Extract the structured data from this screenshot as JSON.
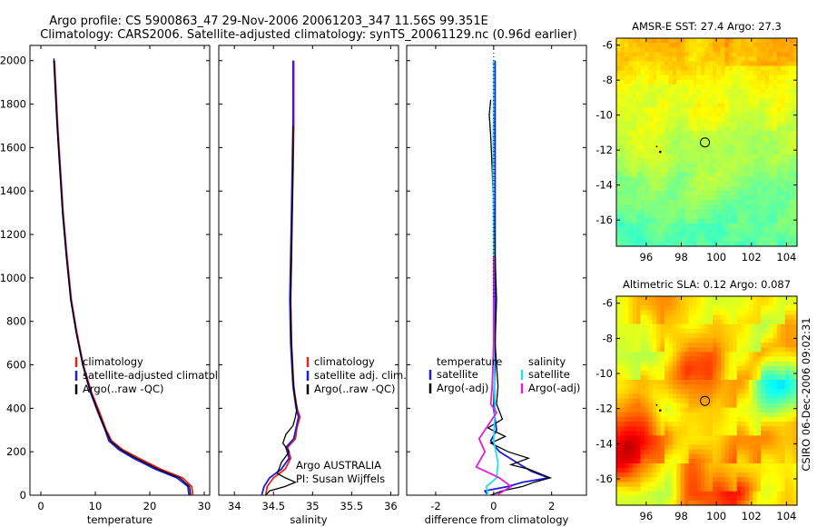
{
  "header": {
    "line1": "Argo profile: CS 5900863_47 29-Nov-2006 20061203_347 11.56S 99.351E",
    "line2": "Climatology: CARS2006. Satellite-adjusted climatology: synTS_20061129.nc (0.96d earlier)"
  },
  "side_label": "CSIRO 06-Dec-2006 09:02:31",
  "colors": {
    "climatology": "#e8231c",
    "satellite": "#1c1cdc",
    "argo": "#000000",
    "sat_diff": "#25e0e8",
    "argo_diff": "#e020d8"
  },
  "chart_data": [
    {
      "type": "line",
      "id": "temperature",
      "xlabel": "temperature",
      "xlim": [
        -2,
        31
      ],
      "ylim": [
        2070,
        0
      ],
      "xticks": [
        0,
        10,
        20,
        30
      ],
      "yticks": [
        0,
        200,
        400,
        600,
        800,
        1000,
        1200,
        1400,
        1600,
        1800,
        2000
      ],
      "legend": [
        "climatology",
        "satellite-adjusted climatology",
        "Argo(..raw -QC)"
      ],
      "series": [
        {
          "name": "climatology",
          "color": "#e8231c",
          "points": [
            [
              27.9,
              0
            ],
            [
              27.7,
              40
            ],
            [
              26,
              80
            ],
            [
              22,
              120
            ],
            [
              18,
              170
            ],
            [
              15,
              210
            ],
            [
              13,
              250
            ],
            [
              12,
              300
            ],
            [
              10.8,
              380
            ],
            [
              9.2,
              480
            ],
            [
              7.8,
              600
            ],
            [
              6.6,
              750
            ],
            [
              5.6,
              900
            ],
            [
              4.8,
              1100
            ],
            [
              4.1,
              1300
            ],
            [
              3.6,
              1500
            ],
            [
              3.1,
              1700
            ],
            [
              2.8,
              1850
            ],
            [
              2.5,
              2000
            ]
          ]
        },
        {
          "name": "satellite-adjusted climatology",
          "color": "#1c1cdc",
          "points": [
            [
              27.2,
              0
            ],
            [
              27,
              40
            ],
            [
              25,
              80
            ],
            [
              21,
              120
            ],
            [
              17,
              170
            ],
            [
              14.3,
              210
            ],
            [
              12.5,
              250
            ],
            [
              11.8,
              300
            ],
            [
              10.5,
              380
            ],
            [
              9,
              480
            ],
            [
              7.7,
              600
            ],
            [
              6.5,
              750
            ],
            [
              5.5,
              900
            ],
            [
              4.7,
              1100
            ],
            [
              4,
              1300
            ],
            [
              3.5,
              1500
            ],
            [
              3,
              1700
            ],
            [
              2.7,
              1850
            ],
            [
              2.4,
              2000
            ]
          ]
        },
        {
          "name": "Argo(..raw -QC)",
          "color": "#000000",
          "points": [
            [
              27.5,
              0
            ],
            [
              27.3,
              40
            ],
            [
              25.5,
              80
            ],
            [
              21.5,
              120
            ],
            [
              17.5,
              170
            ],
            [
              14.7,
              210
            ],
            [
              12.8,
              250
            ],
            [
              11.9,
              300
            ],
            [
              10.6,
              380
            ],
            [
              9.1,
              480
            ],
            [
              7.7,
              600
            ],
            [
              6.5,
              750
            ],
            [
              5.5,
              900
            ],
            [
              4.7,
              1100
            ],
            [
              4,
              1300
            ],
            [
              3.5,
              1500
            ],
            [
              3,
              1700
            ],
            [
              2.7,
              1850
            ],
            [
              2.4,
              2010
            ]
          ]
        }
      ]
    },
    {
      "type": "line",
      "id": "salinity",
      "xlabel": "salinity",
      "xlim": [
        33.8,
        36.1
      ],
      "ylim": [
        2070,
        0
      ],
      "xticks": [
        34,
        34.5,
        35,
        35.5,
        36
      ],
      "legend": [
        "climatology",
        "satellite adj. clim.",
        "Argo(..raw -QC)"
      ],
      "annotation": [
        "Argo AUSTRALIA",
        "PI: Susan Wijffels"
      ],
      "series": [
        {
          "name": "climatology",
          "color": "#e8231c",
          "points": [
            [
              34.4,
              0
            ],
            [
              34.42,
              40
            ],
            [
              34.5,
              80
            ],
            [
              34.65,
              120
            ],
            [
              34.72,
              170
            ],
            [
              34.68,
              220
            ],
            [
              34.78,
              260
            ],
            [
              34.8,
              310
            ],
            [
              34.84,
              360
            ],
            [
              34.8,
              400
            ],
            [
              34.76,
              500
            ],
            [
              34.73,
              700
            ],
            [
              34.72,
              900
            ],
            [
              34.73,
              1100
            ],
            [
              34.74,
              1300
            ],
            [
              34.75,
              1500
            ],
            [
              34.76,
              1700
            ],
            [
              34.76,
              2000
            ]
          ]
        },
        {
          "name": "satellite adj. clim.",
          "color": "#1c1cdc",
          "points": [
            [
              34.35,
              0
            ],
            [
              34.38,
              40
            ],
            [
              34.45,
              80
            ],
            [
              34.6,
              120
            ],
            [
              34.7,
              170
            ],
            [
              34.66,
              220
            ],
            [
              34.76,
              260
            ],
            [
              34.79,
              310
            ],
            [
              34.82,
              360
            ],
            [
              34.79,
              400
            ],
            [
              34.75,
              500
            ],
            [
              34.72,
              700
            ],
            [
              34.71,
              900
            ],
            [
              34.72,
              1100
            ],
            [
              34.73,
              1300
            ],
            [
              34.74,
              1500
            ],
            [
              34.75,
              1700
            ],
            [
              34.75,
              2000
            ]
          ]
        },
        {
          "name": "Argo(..raw -QC)",
          "color": "#000000",
          "points": [
            [
              34.4,
              0
            ],
            [
              34.45,
              20
            ],
            [
              34.65,
              40
            ],
            [
              34.78,
              60
            ],
            [
              34.65,
              80
            ],
            [
              34.55,
              100
            ],
            [
              34.6,
              150
            ],
            [
              34.7,
              200
            ],
            [
              34.62,
              240
            ],
            [
              34.66,
              280
            ],
            [
              34.75,
              320
            ],
            [
              34.78,
              360
            ],
            [
              34.8,
              400
            ],
            [
              34.77,
              460
            ],
            [
              34.75,
              540
            ],
            [
              34.73,
              700
            ],
            [
              34.72,
              900
            ],
            [
              34.73,
              1100
            ],
            [
              34.74,
              1300
            ],
            [
              34.75,
              1500
            ],
            [
              34.75,
              1700
            ]
          ]
        }
      ]
    },
    {
      "type": "line",
      "id": "difference",
      "xlabel": "difference from climatology",
      "xlim": [
        -3,
        3.2
      ],
      "ylim": [
        2070,
        0
      ],
      "xticks": [
        -2,
        0,
        2
      ],
      "legend_left": {
        "title": "temperature",
        "items": [
          "satellite",
          "Argo(-adj)"
        ]
      },
      "legend_right": {
        "title": "salinity",
        "items": [
          "satellite",
          "Argo(-adj)"
        ]
      },
      "series": [
        {
          "name": "satellite",
          "quantity": "temperature",
          "color": "#1c1cdc",
          "points": [
            [
              -0.2,
              0
            ],
            [
              -0.3,
              20
            ],
            [
              0.5,
              40
            ],
            [
              1,
              60
            ],
            [
              1.9,
              80
            ],
            [
              1.3,
              110
            ],
            [
              0.8,
              150
            ],
            [
              0.2,
              200
            ],
            [
              -0.1,
              250
            ],
            [
              0.1,
              300
            ],
            [
              0,
              400
            ],
            [
              0.05,
              600
            ],
            [
              0.05,
              1000
            ],
            [
              0.05,
              1400
            ],
            [
              0.05,
              1800
            ],
            [
              0.05,
              2000
            ]
          ]
        },
        {
          "name": "Argo(-adj)",
          "quantity": "temperature",
          "color": "#000000",
          "points": [
            [
              -0.1,
              0
            ],
            [
              0.3,
              20
            ],
            [
              1,
              40
            ],
            [
              1.4,
              60
            ],
            [
              1.95,
              80
            ],
            [
              1.2,
              120
            ],
            [
              0.6,
              140
            ],
            [
              1.2,
              170
            ],
            [
              0.5,
              200
            ],
            [
              -0.1,
              240
            ],
            [
              0.4,
              270
            ],
            [
              -0.2,
              310
            ],
            [
              0.3,
              350
            ],
            [
              0.1,
              420
            ],
            [
              0.15,
              500
            ],
            [
              0.05,
              700
            ],
            [
              0.1,
              900
            ],
            [
              0.05,
              1100
            ],
            [
              0,
              1300
            ],
            [
              -0.05,
              1500
            ],
            [
              -0.1,
              1650
            ],
            [
              -0.15,
              1750
            ],
            [
              -0.1,
              1820
            ]
          ]
        },
        {
          "name": "satellite",
          "quantity": "salinity",
          "color": "#25e0e8",
          "points": [
            [
              -0.2,
              0
            ],
            [
              -0.25,
              40
            ],
            [
              0.1,
              80
            ],
            [
              0.15,
              150
            ],
            [
              0,
              250
            ],
            [
              0.05,
              400
            ],
            [
              0,
              700
            ],
            [
              0,
              1100
            ],
            [
              -0.02,
              1500
            ],
            [
              0,
              1800
            ],
            [
              0,
              2000
            ]
          ]
        },
        {
          "name": "Argo(-adj)",
          "quantity": "salinity",
          "color": "#e020d8",
          "points": [
            [
              0.1,
              0
            ],
            [
              0.6,
              40
            ],
            [
              0.2,
              80
            ],
            [
              -0.6,
              130
            ],
            [
              -0.3,
              200
            ],
            [
              -0.5,
              260
            ],
            [
              -0.2,
              320
            ],
            [
              0.1,
              380
            ],
            [
              -0.1,
              420
            ],
            [
              -0.05,
              500
            ],
            [
              0,
              700
            ],
            [
              0,
              1100
            ]
          ]
        }
      ]
    },
    {
      "type": "heatmap",
      "id": "sst-map",
      "title": "AMSR-E SST: 27.4 Argo: 27.3",
      "xlim": [
        94.3,
        104.6
      ],
      "ylim": [
        -17.5,
        -5.6
      ],
      "xticks": [
        96,
        98,
        100,
        102,
        104
      ],
      "yticks": [
        -6,
        -8,
        -10,
        -12,
        -14,
        -16
      ],
      "marker": [
        99.35,
        -11.56
      ]
    },
    {
      "type": "heatmap",
      "id": "sla-map",
      "title": "Altimetric SLA: 0.12 Argo: 0.087",
      "xlim": [
        94.3,
        104.6
      ],
      "ylim": [
        -17.5,
        -5.6
      ],
      "xticks": [
        96,
        98,
        100,
        102,
        104
      ],
      "yticks": [
        -6,
        -8,
        -10,
        -12,
        -14,
        -16
      ],
      "marker": [
        99.35,
        -11.56
      ]
    }
  ]
}
